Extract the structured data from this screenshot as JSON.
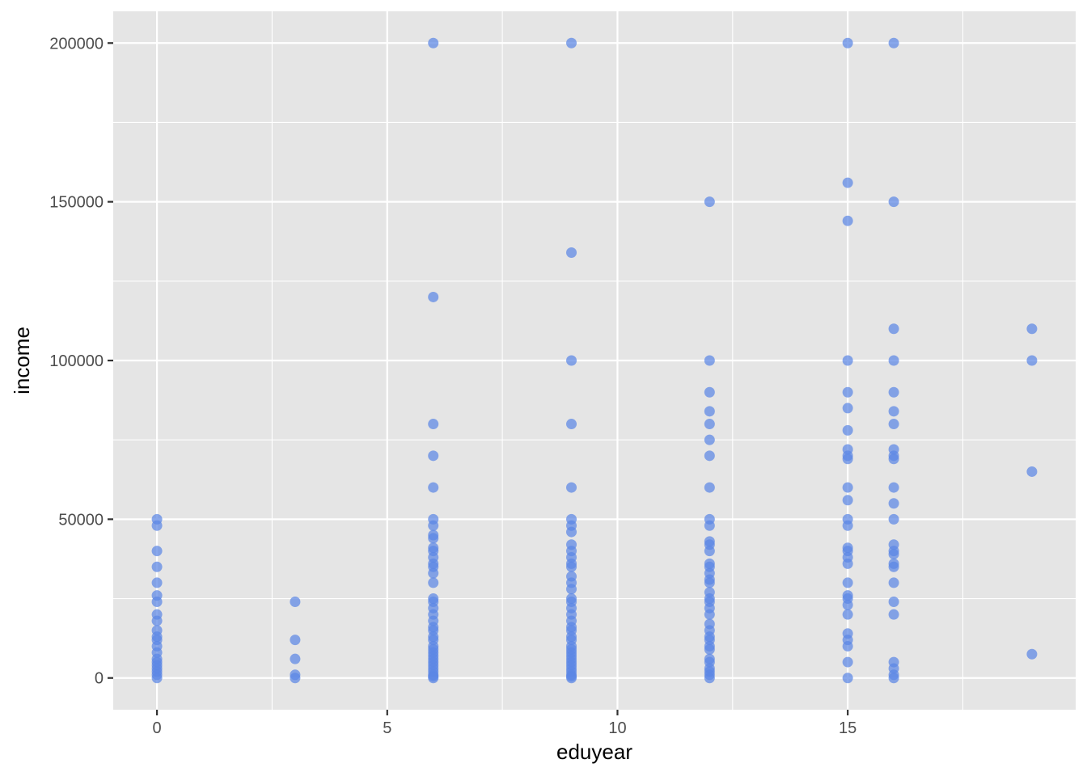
{
  "chart_data": {
    "type": "scatter",
    "title": "",
    "xlabel": "eduyear",
    "ylabel": "income",
    "xlim": [
      -0.95,
      19.95
    ],
    "ylim": [
      -10000,
      210000
    ],
    "x_ticks": [
      0,
      5,
      10,
      15
    ],
    "x_tick_labels": [
      "0",
      "5",
      "10",
      "15"
    ],
    "y_ticks": [
      0,
      50000,
      100000,
      150000,
      200000
    ],
    "y_tick_labels": [
      "0",
      "50000",
      "100000",
      "150000",
      "200000"
    ],
    "x_minor_ticks": [
      2.5,
      7.5,
      12.5,
      17.5
    ],
    "y_minor_ticks": [
      25000,
      75000,
      125000,
      175000
    ],
    "grid": true,
    "legend": "none",
    "colors": {
      "panel": "#e5e5e5",
      "grid": "#ffffff",
      "point": "#5b86e5"
    },
    "series": [
      {
        "points": [
          [
            0,
            50000
          ],
          [
            0,
            48000
          ],
          [
            0,
            40000
          ],
          [
            0,
            35000
          ],
          [
            0,
            30000
          ],
          [
            0,
            26000
          ],
          [
            0,
            24000
          ],
          [
            0,
            20000
          ],
          [
            0,
            18000
          ],
          [
            0,
            15000
          ],
          [
            0,
            13000
          ],
          [
            0,
            12000
          ],
          [
            0,
            10000
          ],
          [
            0,
            8000
          ],
          [
            0,
            6000
          ],
          [
            0,
            5000
          ],
          [
            0,
            4000
          ],
          [
            0,
            3000
          ],
          [
            0,
            2000
          ],
          [
            0,
            1000
          ],
          [
            0,
            0
          ],
          [
            3,
            24000
          ],
          [
            3,
            12000
          ],
          [
            3,
            6000
          ],
          [
            3,
            1000
          ],
          [
            3,
            0
          ],
          [
            6,
            200000
          ],
          [
            6,
            120000
          ],
          [
            6,
            80000
          ],
          [
            6,
            70000
          ],
          [
            6,
            60000
          ],
          [
            6,
            50000
          ],
          [
            6,
            48000
          ],
          [
            6,
            45000
          ],
          [
            6,
            44000
          ],
          [
            6,
            41000
          ],
          [
            6,
            40000
          ],
          [
            6,
            38000
          ],
          [
            6,
            36000
          ],
          [
            6,
            35000
          ],
          [
            6,
            33000
          ],
          [
            6,
            30000
          ],
          [
            6,
            25000
          ],
          [
            6,
            24000
          ],
          [
            6,
            22000
          ],
          [
            6,
            20000
          ],
          [
            6,
            18000
          ],
          [
            6,
            16000
          ],
          [
            6,
            15000
          ],
          [
            6,
            13000
          ],
          [
            6,
            12000
          ],
          [
            6,
            10000
          ],
          [
            6,
            9000
          ],
          [
            6,
            8000
          ],
          [
            6,
            7000
          ],
          [
            6,
            6000
          ],
          [
            6,
            5000
          ],
          [
            6,
            4000
          ],
          [
            6,
            3000
          ],
          [
            6,
            2000
          ],
          [
            6,
            1000
          ],
          [
            6,
            500
          ],
          [
            6,
            0
          ],
          [
            9,
            200000
          ],
          [
            9,
            134000
          ],
          [
            9,
            100000
          ],
          [
            9,
            80000
          ],
          [
            9,
            60000
          ],
          [
            9,
            50000
          ],
          [
            9,
            48000
          ],
          [
            9,
            46000
          ],
          [
            9,
            42000
          ],
          [
            9,
            40000
          ],
          [
            9,
            38000
          ],
          [
            9,
            36000
          ],
          [
            9,
            35000
          ],
          [
            9,
            32000
          ],
          [
            9,
            30000
          ],
          [
            9,
            28000
          ],
          [
            9,
            25000
          ],
          [
            9,
            24000
          ],
          [
            9,
            22000
          ],
          [
            9,
            20000
          ],
          [
            9,
            18000
          ],
          [
            9,
            16000
          ],
          [
            9,
            15000
          ],
          [
            9,
            13000
          ],
          [
            9,
            12000
          ],
          [
            9,
            10000
          ],
          [
            9,
            9000
          ],
          [
            9,
            8000
          ],
          [
            9,
            7000
          ],
          [
            9,
            6000
          ],
          [
            9,
            5000
          ],
          [
            9,
            4000
          ],
          [
            9,
            3000
          ],
          [
            9,
            2000
          ],
          [
            9,
            1000
          ],
          [
            9,
            500
          ],
          [
            9,
            0
          ],
          [
            12,
            150000
          ],
          [
            12,
            100000
          ],
          [
            12,
            90000
          ],
          [
            12,
            84000
          ],
          [
            12,
            80000
          ],
          [
            12,
            75000
          ],
          [
            12,
            70000
          ],
          [
            12,
            60000
          ],
          [
            12,
            50000
          ],
          [
            12,
            48000
          ],
          [
            12,
            43000
          ],
          [
            12,
            42000
          ],
          [
            12,
            40000
          ],
          [
            12,
            36000
          ],
          [
            12,
            35000
          ],
          [
            12,
            33000
          ],
          [
            12,
            31000
          ],
          [
            12,
            30000
          ],
          [
            12,
            27000
          ],
          [
            12,
            25000
          ],
          [
            12,
            24000
          ],
          [
            12,
            22000
          ],
          [
            12,
            20000
          ],
          [
            12,
            17000
          ],
          [
            12,
            15000
          ],
          [
            12,
            13000
          ],
          [
            12,
            12000
          ],
          [
            12,
            10000
          ],
          [
            12,
            9000
          ],
          [
            12,
            6000
          ],
          [
            12,
            5000
          ],
          [
            12,
            3000
          ],
          [
            12,
            2000
          ],
          [
            12,
            1000
          ],
          [
            12,
            0
          ],
          [
            15,
            200000
          ],
          [
            15,
            156000
          ],
          [
            15,
            144000
          ],
          [
            15,
            100000
          ],
          [
            15,
            90000
          ],
          [
            15,
            85000
          ],
          [
            15,
            78000
          ],
          [
            15,
            72000
          ],
          [
            15,
            70000
          ],
          [
            15,
            69000
          ],
          [
            15,
            60000
          ],
          [
            15,
            56000
          ],
          [
            15,
            50000
          ],
          [
            15,
            48000
          ],
          [
            15,
            41000
          ],
          [
            15,
            40000
          ],
          [
            15,
            38000
          ],
          [
            15,
            36000
          ],
          [
            15,
            30000
          ],
          [
            15,
            26000
          ],
          [
            15,
            25000
          ],
          [
            15,
            23000
          ],
          [
            15,
            20000
          ],
          [
            15,
            14000
          ],
          [
            15,
            12000
          ],
          [
            15,
            10000
          ],
          [
            15,
            5000
          ],
          [
            15,
            0
          ],
          [
            16,
            200000
          ],
          [
            16,
            150000
          ],
          [
            16,
            110000
          ],
          [
            16,
            100000
          ],
          [
            16,
            90000
          ],
          [
            16,
            84000
          ],
          [
            16,
            80000
          ],
          [
            16,
            72000
          ],
          [
            16,
            70000
          ],
          [
            16,
            69000
          ],
          [
            16,
            60000
          ],
          [
            16,
            55000
          ],
          [
            16,
            50000
          ],
          [
            16,
            42000
          ],
          [
            16,
            40000
          ],
          [
            16,
            39000
          ],
          [
            16,
            36000
          ],
          [
            16,
            35000
          ],
          [
            16,
            30000
          ],
          [
            16,
            24000
          ],
          [
            16,
            20000
          ],
          [
            16,
            5000
          ],
          [
            16,
            3000
          ],
          [
            16,
            1000
          ],
          [
            16,
            0
          ],
          [
            19,
            110000
          ],
          [
            19,
            100000
          ],
          [
            19,
            65000
          ],
          [
            19,
            7500
          ]
        ]
      }
    ]
  }
}
